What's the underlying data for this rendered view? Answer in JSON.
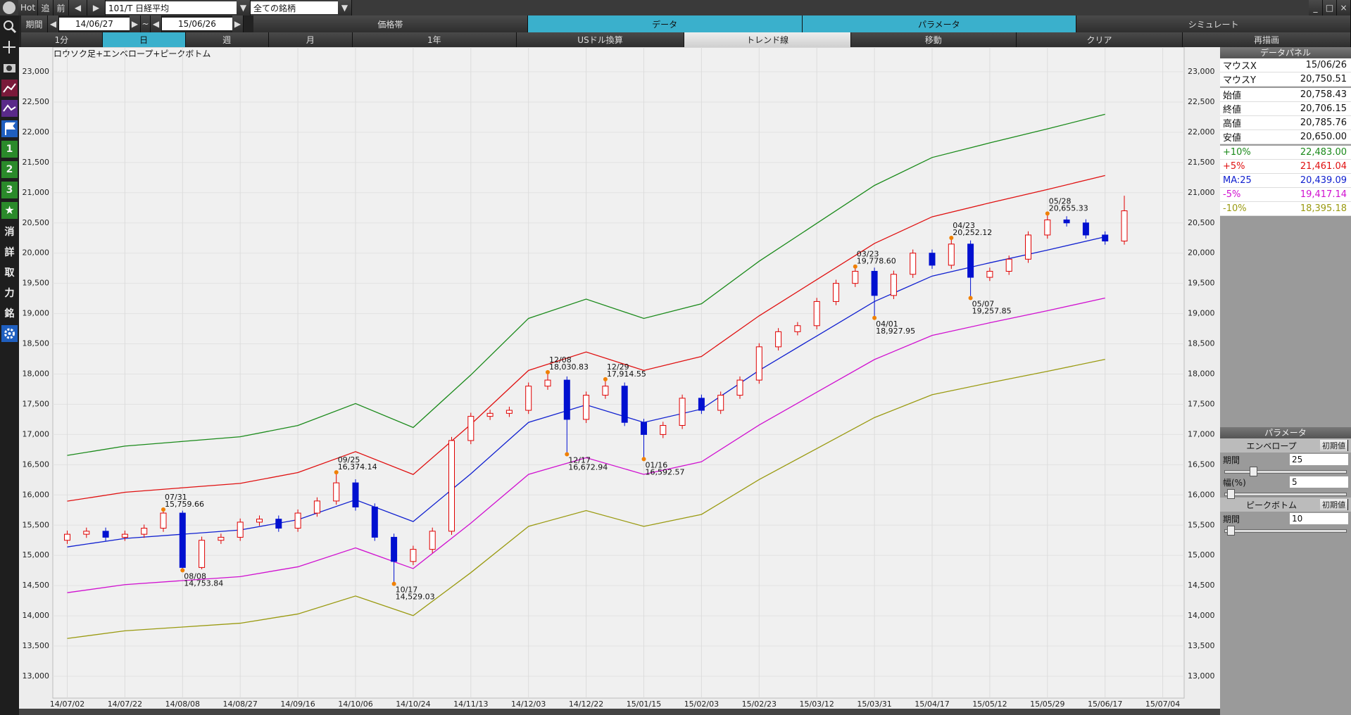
{
  "toolbar": {
    "hot": "Hot",
    "tsui": "追",
    "mae": "前",
    "symbol": "101/T 日経平均",
    "universe": "全ての銘柄",
    "period_label": "期間",
    "from": "14/06/27",
    "tilde": "~",
    "to": "15/06/26",
    "tabs": [
      "価格帯",
      "データ",
      "パラメータ",
      "シミュレート"
    ],
    "buttons": [
      "1分",
      "日",
      "週",
      "月",
      "1年",
      "USドル換算",
      "トレンド線",
      "移動",
      "クリア",
      "再描画"
    ]
  },
  "side_tools": [
    "1",
    "2",
    "3",
    "消",
    "詳",
    "取",
    "力",
    "銘"
  ],
  "data_panel": {
    "title": "データパネル",
    "rows": [
      [
        "マウスX",
        "15/06/26"
      ],
      [
        "マウスY",
        "20,750.51"
      ],
      [
        "始値",
        "20,758.43"
      ],
      [
        "終値",
        "20,706.15"
      ],
      [
        "高値",
        "20,785.76"
      ],
      [
        "安値",
        "20,650.00"
      ],
      [
        "+10%",
        "22,483.00"
      ],
      [
        "+5%",
        "21,461.04"
      ],
      [
        "MA:25",
        "20,439.09"
      ],
      [
        "-5%",
        "19,417.14"
      ],
      [
        "-10%",
        "18,395.18"
      ]
    ]
  },
  "parameters": {
    "title": "パラメータ",
    "envelope": {
      "title": "エンベロープ",
      "reset": "初期値",
      "period_label": "期間",
      "period": "25",
      "width_label": "幅(%)",
      "width": "5"
    },
    "peak_bottom": {
      "title": "ピークボトム",
      "reset": "初期値",
      "period_label": "期間",
      "period": "10"
    }
  },
  "chart_data": {
    "type": "candlestick",
    "title": "ロウソク足+エンベロープ+ピークボトム",
    "grid": true,
    "up_color": "#e00000",
    "down_color": "#0010d0",
    "categories": [
      "14/07/02",
      null,
      null,
      "14/07/22",
      null,
      null,
      "14/08/08",
      null,
      null,
      "14/08/27",
      null,
      null,
      "14/09/16",
      null,
      null,
      "14/10/06",
      null,
      null,
      "14/10/24",
      null,
      null,
      "14/11/13",
      null,
      null,
      "14/12/03",
      null,
      null,
      "14/12/22",
      null,
      null,
      "15/01/15",
      null,
      null,
      "15/02/03",
      null,
      null,
      "15/02/23",
      null,
      null,
      "15/03/12",
      null,
      null,
      "15/03/31",
      null,
      null,
      "15/04/17",
      null,
      null,
      "15/05/12",
      null,
      null,
      "15/05/29",
      null,
      null,
      "15/06/17",
      null,
      null,
      "15/07/04"
    ],
    "open": [
      15250,
      15350,
      15400,
      15300,
      15350,
      15450,
      15700,
      14800,
      15250,
      15300,
      15550,
      15600,
      15450,
      15700,
      15900,
      16200,
      15800,
      15300,
      14900,
      15100,
      15400,
      16900,
      17300,
      17350,
      17400,
      17800,
      17900,
      17250,
      17650,
      17800,
      17200,
      17000,
      17150,
      17600,
      17400,
      17650,
      17900,
      18450,
      18700,
      18800,
      19200,
      19500,
      19700,
      19300,
      19650,
      20000,
      19800,
      20150,
      19600,
      19700,
      19900,
      20300,
      20550,
      20500,
      20300,
      20200,
      null,
      null
    ],
    "high": [
      15410,
      15460,
      15460,
      15410,
      15510,
      15759.66,
      15740,
      15310,
      15360,
      15610,
      15660,
      15660,
      15760,
      15960,
      16374.14,
      16260,
      15860,
      15360,
      15160,
      15460,
      16960,
      17360,
      17410,
      17460,
      17860,
      18030.83,
      17960,
      17710,
      17914.55,
      17860,
      17260,
      17210,
      17660,
      17660,
      17710,
      17960,
      18510,
      18760,
      18860,
      19260,
      19560,
      19778.6,
      19760,
      19710,
      20060,
      20060,
      20252.12,
      20210,
      19760,
      19960,
      20360,
      20655.33,
      20610,
      20560,
      20360,
      20950,
      null,
      null
    ],
    "low": [
      15190,
      15290,
      15240,
      15240,
      15290,
      15390,
      14753.84,
      14770,
      15190,
      15240,
      15490,
      15390,
      15390,
      15640,
      15840,
      15740,
      15240,
      14529.03,
      14840,
      15040,
      15340,
      16840,
      17240,
      17290,
      17340,
      17740,
      16672.94,
      17190,
      17590,
      17140,
      16592.57,
      16940,
      17090,
      17340,
      17340,
      17590,
      17840,
      18390,
      18640,
      18740,
      19140,
      19440,
      18927.95,
      19240,
      19590,
      19740,
      19740,
      19257.85,
      19540,
      19640,
      19840,
      20240,
      20440,
      20240,
      20140,
      20140,
      null,
      null
    ],
    "close": [
      15350,
      15400,
      15300,
      15350,
      15450,
      15700,
      14800,
      15250,
      15300,
      15550,
      15600,
      15450,
      15700,
      15900,
      16200,
      15800,
      15300,
      14900,
      15100,
      15400,
      16900,
      17300,
      17350,
      17400,
      17800,
      17900,
      17250,
      17650,
      17800,
      17200,
      17000,
      17150,
      17600,
      17400,
      17650,
      17900,
      18450,
      18700,
      18800,
      19200,
      19500,
      19700,
      19300,
      19650,
      20000,
      19800,
      20150,
      19600,
      19700,
      19900,
      20300,
      20550,
      20500,
      20300,
      20200,
      20700,
      null,
      null
    ],
    "lines": {
      "x": [
        "14/07/02",
        "14/07/22",
        "14/08/08",
        "14/08/27",
        "14/09/16",
        "14/10/06",
        "14/10/24",
        "14/11/13",
        "14/12/03",
        "14/12/22",
        "15/01/15",
        "15/02/03",
        "15/02/23",
        "15/03/12",
        "15/03/31",
        "15/04/17",
        "15/05/12",
        "15/05/29",
        "15/06/17"
      ],
      "series": [
        {
          "name": "+10%",
          "color": "#1a8a1a",
          "values": [
            16654,
            16808,
            16885,
            16962,
            17149,
            17512,
            17116,
            17985,
            18920,
            19239,
            18920,
            19162,
            19866,
            20493,
            21120,
            21582,
            21824,
            22055,
            22297
          ]
        },
        {
          "name": "+5%",
          "color": "#e01010",
          "values": [
            15897,
            16044,
            16118,
            16191,
            16370,
            16716,
            16338,
            17168,
            18060,
            18365,
            18060,
            18291,
            18963,
            19562,
            20160,
            20601,
            20832,
            21053,
            21284
          ]
        },
        {
          "name": "MA:25",
          "color": "#1020d0",
          "values": [
            15140,
            15280,
            15350,
            15420,
            15590,
            15920,
            15560,
            16350,
            17200,
            17490,
            17200,
            17420,
            18060,
            18630,
            19200,
            19620,
            19840,
            20050,
            20270
          ]
        },
        {
          "name": "-5%",
          "color": "#d010d0",
          "values": [
            14383,
            14516,
            14583,
            14649,
            14811,
            15124,
            14782,
            15533,
            16340,
            16616,
            16340,
            16549,
            17157,
            17699,
            18240,
            18639,
            18848,
            19048,
            19257
          ]
        },
        {
          "name": "-10%",
          "color": "#9a9a10",
          "values": [
            13626,
            13752,
            13815,
            13878,
            14031,
            14328,
            14004,
            14715,
            15480,
            15741,
            15480,
            15678,
            16254,
            16767,
            17280,
            17658,
            17856,
            18045,
            18243
          ]
        }
      ]
    },
    "peaks": [
      {
        "date": "07/31",
        "value": 15759.66,
        "label": "15,759.66"
      },
      {
        "date": "08/08",
        "value": 14753.84,
        "label": "14,753.84"
      },
      {
        "date": "09/25",
        "value": 16374.14,
        "label": "16,374.14"
      },
      {
        "date": "10/17",
        "value": 14529.03,
        "label": "14,529.03"
      },
      {
        "date": "12/08",
        "value": 18030.83,
        "label": "18,030.83"
      },
      {
        "date": "12/17",
        "value": 16672.94,
        "label": "16,672.94"
      },
      {
        "date": "12/29",
        "value": 17914.55,
        "label": "17,914.55"
      },
      {
        "date": "01/16",
        "value": 16592.57,
        "label": "16,592.57"
      },
      {
        "date": "03/23",
        "value": 19778.6,
        "label": "19,778.60"
      },
      {
        "date": "04/01",
        "value": 18927.95,
        "label": "18,927.95"
      },
      {
        "date": "04/23",
        "value": 20252.12,
        "label": "20,252.12"
      },
      {
        "date": "05/07",
        "value": 19257.85,
        "label": "19,257.85"
      },
      {
        "date": "05/28",
        "value": 20655.33,
        "label": "20,655.33"
      }
    ],
    "ylim": [
      13000,
      23000
    ],
    "yticks": [
      {
        "value": 13000,
        "label": "13,000"
      },
      {
        "value": 13500,
        "label": "13,500"
      },
      {
        "value": 14000,
        "label": "14,000"
      },
      {
        "value": 14500,
        "label": "14,500"
      },
      {
        "value": 15000,
        "label": "15,000"
      },
      {
        "value": 15500,
        "label": "15,500"
      },
      {
        "value": 16000,
        "label": "16,000"
      },
      {
        "value": 16500,
        "label": "16,500"
      },
      {
        "value": 17000,
        "label": "17,000"
      },
      {
        "value": 17500,
        "label": "17,500"
      },
      {
        "value": 18000,
        "label": "18,000"
      },
      {
        "value": 18500,
        "label": "18,500"
      },
      {
        "value": 19000,
        "label": "19,000"
      },
      {
        "value": 19500,
        "label": "19,500"
      },
      {
        "value": 20000,
        "label": "20,000"
      },
      {
        "value": 20500,
        "label": "20,500"
      },
      {
        "value": 21000,
        "label": "21,000"
      },
      {
        "value": 21500,
        "label": "21,500"
      },
      {
        "value": 22000,
        "label": "22,000"
      },
      {
        "value": 22500,
        "label": "22,500"
      },
      {
        "value": 23000,
        "label": "23,000"
      }
    ]
  }
}
